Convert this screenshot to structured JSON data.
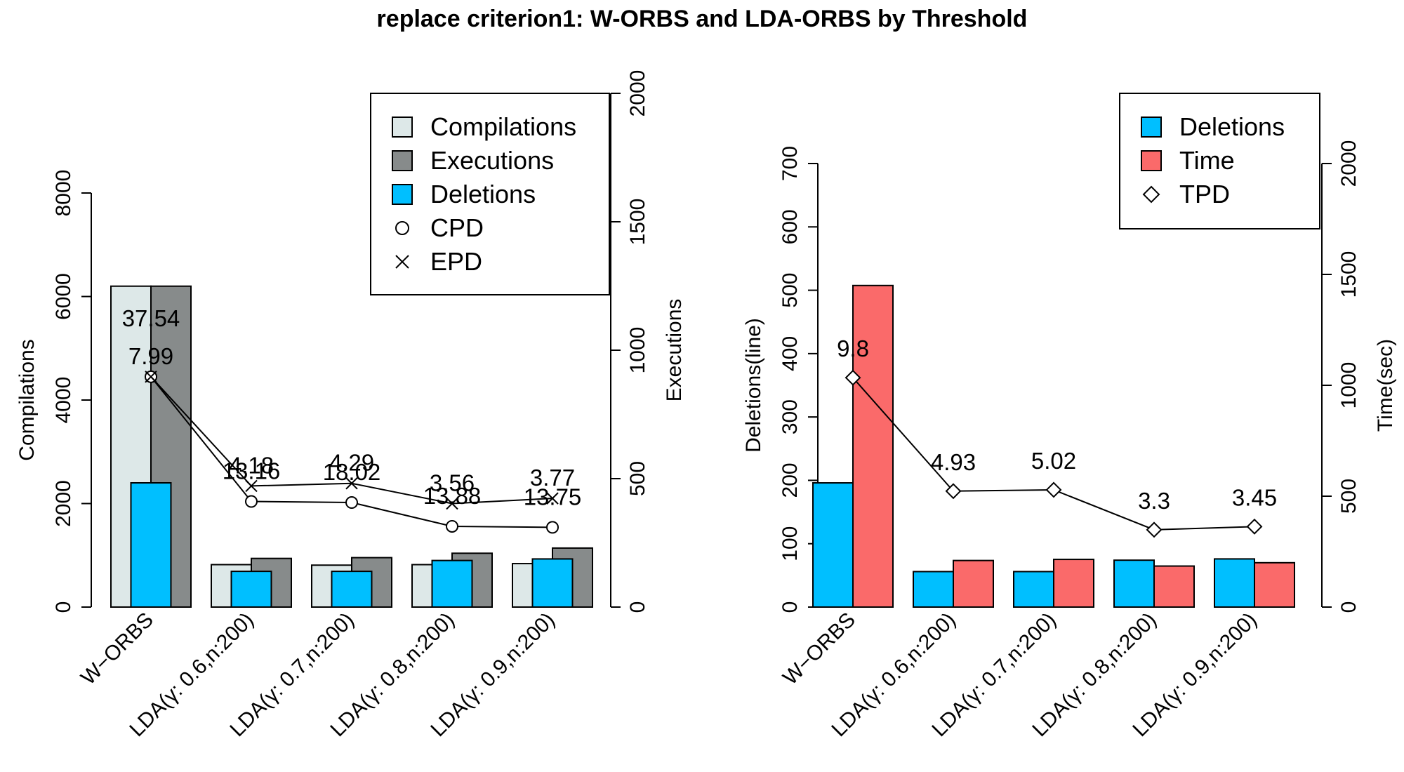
{
  "chart_data": {
    "title": "replace criterion1: W-ORBS and LDA-ORBS by Threshold",
    "categories": [
      "W−ORBS",
      "LDA(γ: 0.6,n:200)",
      "LDA(γ: 0.7,n:200)",
      "LDA(γ: 0.8,n:200)",
      "LDA(γ: 0.9,n:200)"
    ],
    "colors": {
      "compilations": "#dde8e8",
      "executions": "#878b8b",
      "deletions": "#00bfff",
      "time": "#fa6a6a"
    },
    "panels": [
      {
        "type": "bar",
        "left_axis": {
          "label": "Compilations",
          "ylim": [
            0,
            8000
          ],
          "ticks": [
            0,
            2000,
            4000,
            6000,
            8000
          ]
        },
        "right_axis": {
          "label": "Executions",
          "ylim": [
            0,
            2000
          ],
          "ticks": [
            0,
            500,
            1000,
            1500,
            2000
          ]
        },
        "legend": {
          "position": "top-right",
          "entries": [
            {
              "label": "Compilations",
              "kind": "box",
              "color": "#dde8e8"
            },
            {
              "label": "Executions",
              "kind": "box",
              "color": "#878b8b"
            },
            {
              "label": "Deletions",
              "kind": "box",
              "color": "#00bfff"
            },
            {
              "label": "CPD",
              "kind": "circle"
            },
            {
              "label": "EPD",
              "kind": "cross"
            }
          ]
        },
        "bars": [
          {
            "name": "Compilations",
            "axis": "left",
            "slot": 0,
            "color": "#dde8e8",
            "values": [
              6200,
              820,
              810,
              820,
              840
            ]
          },
          {
            "name": "Executions",
            "axis": "left",
            "slot": 1,
            "color": "#878b8b",
            "values": [
              6200,
              940,
              955,
              1040,
              1140
            ]
          },
          {
            "name": "Deletions",
            "axis": "left",
            "slot": 0.5,
            "color": "#00bfff",
            "values": [
              2400,
              690,
              690,
              900,
              930
            ]
          }
        ],
        "lines": [
          {
            "name": "CPD",
            "axis": "left",
            "marker": "circle",
            "values": [
              4450,
              2040,
              2020,
              1560,
              1540
            ],
            "labels": [
              "37.54",
              "13.16",
              "18.02",
              "13.88",
              "13.75"
            ]
          },
          {
            "name": "EPD",
            "axis": "left",
            "marker": "cross",
            "values": [
              4450,
              2340,
              2390,
              2000,
              2100
            ],
            "labels": [
              "7.99",
              "4.18",
              "4.29",
              "3.56",
              "3.77"
            ]
          }
        ]
      },
      {
        "type": "bar",
        "left_axis": {
          "label": "Deletions(line)",
          "ylim": [
            0,
            700
          ],
          "ticks": [
            0,
            100,
            200,
            300,
            400,
            500,
            600,
            700
          ]
        },
        "right_axis": {
          "label": "Time(sec)",
          "ylim": [
            0,
            2000
          ],
          "ticks": [
            0,
            500,
            1000,
            1500,
            2000
          ]
        },
        "legend": {
          "position": "top-right",
          "entries": [
            {
              "label": "Deletions",
              "kind": "box",
              "color": "#00bfff"
            },
            {
              "label": "Time",
              "kind": "box",
              "color": "#fa6a6a"
            },
            {
              "label": "TPD",
              "kind": "diamond"
            }
          ]
        },
        "bars": [
          {
            "name": "Deletions",
            "axis": "left",
            "slot": 0,
            "color": "#00bfff",
            "values": [
              196,
              56,
              56,
              74,
              76
            ]
          },
          {
            "name": "Time",
            "axis": "right",
            "slot": 1,
            "color": "#fa6a6a",
            "values": [
              1450,
              210,
              215,
              185,
              200
            ]
          }
        ],
        "lines": [
          {
            "name": "TPD",
            "axis": "left",
            "marker": "diamond",
            "values": [
              362,
              183,
              185,
              122,
              127
            ],
            "labels": [
              "9.8",
              "4.93",
              "5.02",
              "3.3",
              "3.45"
            ]
          }
        ]
      }
    ]
  }
}
